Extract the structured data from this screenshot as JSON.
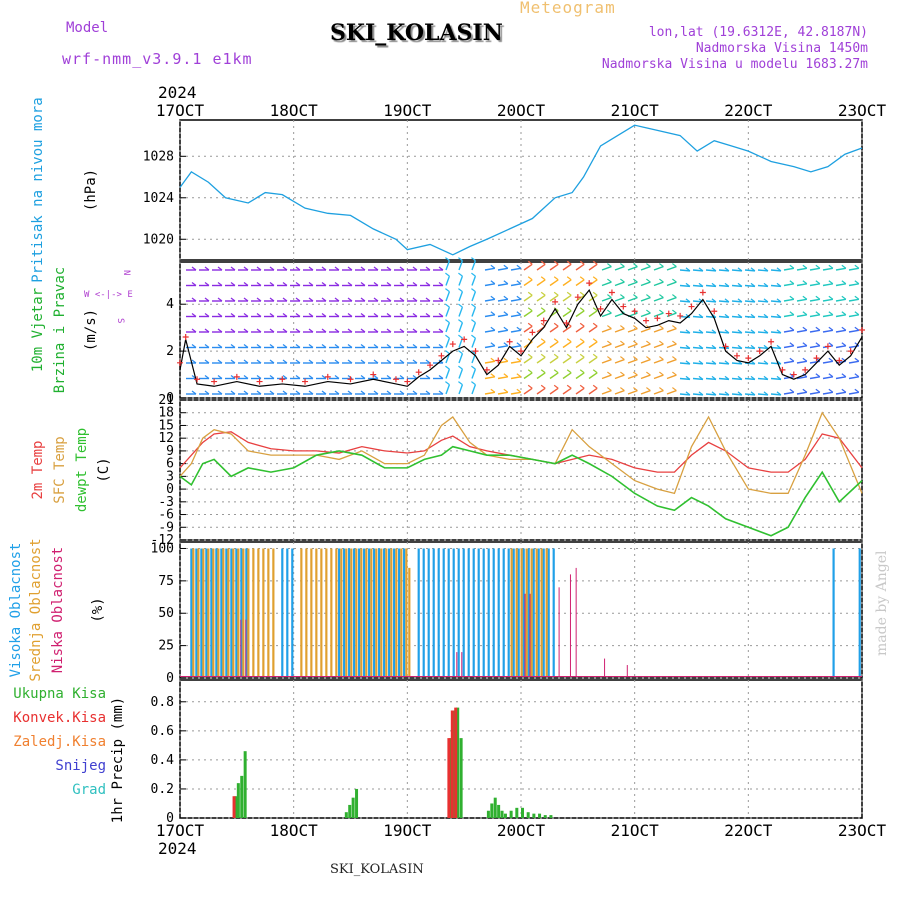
{
  "header": {
    "title": "SKI_KOLASIN",
    "model_label": "Model",
    "model_value": "wrf-nmm_v3.9.1 e1km",
    "meteogram_label": "Meteogram",
    "location_lines": [
      "lon,lat (19.6312E, 42.8187N)",
      "Nadmorska Visina 1450m",
      "Nadmorska Visina u modelu 1683.27m"
    ]
  },
  "footer": {
    "station": "SKI_KOLASIN",
    "credit": "made by Angel"
  },
  "colors": {
    "pressure": "#1ea0e0",
    "wind_speed": "#000000",
    "wind_gust": "#e83030",
    "t2m": "#e84040",
    "sfc": "#d8a040",
    "dewpt": "#30c030",
    "cloud_high": "#20a0e8",
    "cloud_mid": "#e0a030",
    "cloud_low": "#d02070",
    "precip_total": "#30b030",
    "precip_conv": "#e83030",
    "precip_frozen": "#f08030",
    "snow": "#4040d0",
    "graupel": "#30c0c0"
  },
  "chart_data": {
    "type": "line",
    "x_axis": {
      "ticks": [
        "17OCT",
        "18OCT",
        "19OCT",
        "20OCT",
        "21OCT",
        "22OCT",
        "23OCT"
      ],
      "year_label": "2024",
      "xlim_days": [
        17,
        23
      ]
    },
    "panels": [
      {
        "id": "pressure",
        "type": "line",
        "ylabel": [
          "Pritisak na nivou mora",
          "(hPa)"
        ],
        "ylim": [
          1018,
          1031.5
        ],
        "yticks": [
          1020,
          1024,
          1028
        ],
        "series": [
          {
            "name": "",
            "x": [
              17.0,
              17.1,
              17.25,
              17.4,
              17.6,
              17.75,
              17.9,
              18.1,
              18.3,
              18.5,
              18.7,
              18.9,
              19.0,
              19.2,
              19.4,
              19.55,
              19.7,
              19.9,
              20.1,
              20.3,
              20.45,
              20.55,
              20.7,
              20.85,
              21.0,
              21.2,
              21.4,
              21.55,
              21.7,
              21.85,
              22.0,
              22.2,
              22.4,
              22.55,
              22.7,
              22.85,
              23.0
            ],
            "values": [
              1025.0,
              1026.5,
              1025.5,
              1024.0,
              1023.5,
              1024.5,
              1024.3,
              1023.0,
              1022.5,
              1022.3,
              1021.0,
              1020.0,
              1019.0,
              1019.5,
              1018.5,
              1019.3,
              1020.0,
              1021.0,
              1022.0,
              1024.0,
              1024.5,
              1026.0,
              1029.0,
              1030.0,
              1031.0,
              1030.5,
              1030.0,
              1028.5,
              1029.5,
              1029.0,
              1028.5,
              1027.5,
              1027.0,
              1026.5,
              1027.0,
              1028.2,
              1028.8
            ]
          }
        ]
      },
      {
        "id": "wind",
        "type": "line",
        "ylabel": [
          "10m Vjetar",
          "Brzina i Pravac",
          "(m/s)"
        ],
        "direction_key": [
          "N",
          "W <-|-> E",
          "S"
        ],
        "ylim": [
          0,
          5.8
        ],
        "yticks": [
          0,
          2,
          4
        ],
        "series": [
          {
            "name": "",
            "x": [
              17.0,
              17.05,
              17.15,
              17.3,
              17.5,
              17.7,
              17.9,
              18.1,
              18.3,
              18.5,
              18.7,
              18.9,
              19.0,
              19.1,
              19.2,
              19.3,
              19.4,
              19.5,
              19.6,
              19.7,
              19.8,
              19.9,
              20.0,
              20.1,
              20.2,
              20.3,
              20.4,
              20.5,
              20.6,
              20.7,
              20.8,
              20.9,
              21.0,
              21.1,
              21.2,
              21.3,
              21.4,
              21.5,
              21.6,
              21.7,
              21.8,
              21.9,
              22.0,
              22.1,
              22.2,
              22.3,
              22.4,
              22.5,
              22.6,
              22.7,
              22.8,
              22.9,
              23.0
            ],
            "values": [
              1.2,
              2.5,
              0.6,
              0.5,
              0.7,
              0.5,
              0.6,
              0.5,
              0.7,
              0.6,
              0.8,
              0.6,
              0.5,
              0.9,
              1.2,
              1.6,
              2.0,
              2.2,
              1.8,
              1.0,
              1.4,
              2.2,
              1.8,
              2.5,
              3.0,
              3.8,
              3.0,
              4.0,
              4.6,
              3.5,
              4.2,
              3.6,
              3.4,
              3.0,
              3.1,
              3.3,
              3.2,
              3.6,
              4.2,
              3.4,
              2.0,
              1.6,
              1.5,
              1.8,
              2.2,
              1.0,
              0.8,
              1.0,
              1.5,
              2.0,
              1.4,
              1.8,
              2.6
            ]
          },
          {
            "name": "",
            "x": [
              17.0,
              17.05,
              17.15,
              17.3,
              17.5,
              17.7,
              17.9,
              18.1,
              18.3,
              18.5,
              18.7,
              18.9,
              19.0,
              19.1,
              19.2,
              19.3,
              19.4,
              19.5,
              19.6,
              19.7,
              19.8,
              19.9,
              20.0,
              20.1,
              20.2,
              20.3,
              20.4,
              20.5,
              20.6,
              20.7,
              20.8,
              20.9,
              21.0,
              21.1,
              21.2,
              21.3,
              21.4,
              21.5,
              21.6,
              21.7,
              21.8,
              21.9,
              22.0,
              22.1,
              22.2,
              22.3,
              22.4,
              22.5,
              22.6,
              22.7,
              22.8,
              22.9,
              23.0
            ],
            "values": [
              1.5,
              2.6,
              0.8,
              0.7,
              0.9,
              0.7,
              0.8,
              0.7,
              0.9,
              0.8,
              1.0,
              0.8,
              0.7,
              1.1,
              1.4,
              1.8,
              2.3,
              2.5,
              2.0,
              1.2,
              1.6,
              2.4,
              2.0,
              2.8,
              3.3,
              4.1,
              3.2,
              4.3,
              4.9,
              3.8,
              4.5,
              3.9,
              3.7,
              3.3,
              3.4,
              3.6,
              3.5,
              3.9,
              4.5,
              3.7,
              2.2,
              1.8,
              1.7,
              2.0,
              2.4,
              1.2,
              1.0,
              1.2,
              1.7,
              2.2,
              1.6,
              2.0,
              2.9
            ]
          }
        ]
      },
      {
        "id": "temperature",
        "type": "line",
        "ylabel": [
          "2m Temp",
          "SFC Temp",
          "dewpt Temp",
          "(C)"
        ],
        "ylim": [
          -12,
          21
        ],
        "yticks": [
          -12,
          -9,
          -6,
          -3,
          0,
          3,
          6,
          9,
          12,
          15,
          18,
          21
        ],
        "series": [
          {
            "name": "2m Temp",
            "x": [
              17.0,
              17.1,
              17.2,
              17.3,
              17.45,
              17.6,
              17.8,
              18.0,
              18.2,
              18.4,
              18.6,
              18.8,
              19.0,
              19.15,
              19.3,
              19.4,
              19.55,
              19.7,
              19.9,
              20.1,
              20.3,
              20.45,
              20.6,
              20.8,
              21.0,
              21.2,
              21.35,
              21.5,
              21.65,
              21.8,
              22.0,
              22.2,
              22.35,
              22.5,
              22.65,
              22.8,
              23.0
            ],
            "values": [
              5,
              8,
              11,
              13,
              13.5,
              11,
              9.5,
              9,
              9,
              8.5,
              10,
              9,
              8.5,
              9,
              11.5,
              12.5,
              10,
              9,
              8,
              7,
              6,
              7,
              8,
              7,
              5,
              4,
              4,
              8,
              11,
              9,
              5,
              4,
              4,
              7,
              13,
              12,
              5
            ]
          },
          {
            "name": "SFC Temp",
            "x": [
              17.0,
              17.1,
              17.2,
              17.3,
              17.45,
              17.6,
              17.8,
              18.0,
              18.2,
              18.4,
              18.6,
              18.8,
              19.0,
              19.15,
              19.3,
              19.4,
              19.55,
              19.7,
              19.9,
              20.1,
              20.3,
              20.45,
              20.6,
              20.8,
              21.0,
              21.2,
              21.35,
              21.5,
              21.65,
              21.8,
              22.0,
              22.2,
              22.35,
              22.5,
              22.65,
              22.8,
              23.0
            ],
            "values": [
              3,
              6,
              12,
              14,
              13,
              9,
              8,
              8,
              8,
              7,
              9,
              6,
              6,
              8,
              15,
              17,
              11,
              8,
              7,
              7,
              6,
              14,
              10,
              6,
              2,
              0,
              -1,
              10,
              17,
              9,
              0,
              -1,
              -1,
              8,
              18,
              12,
              -1
            ]
          },
          {
            "name": "dewpt Temp",
            "x": [
              17.0,
              17.1,
              17.2,
              17.3,
              17.45,
              17.6,
              17.8,
              18.0,
              18.2,
              18.4,
              18.6,
              18.8,
              19.0,
              19.15,
              19.3,
              19.4,
              19.55,
              19.7,
              19.9,
              20.1,
              20.3,
              20.45,
              20.6,
              20.8,
              21.0,
              21.2,
              21.35,
              21.5,
              21.65,
              21.8,
              22.0,
              22.2,
              22.35,
              22.5,
              22.65,
              22.8,
              23.0
            ],
            "values": [
              3,
              1,
              6,
              7,
              3,
              5,
              4,
              5,
              8,
              9,
              8,
              5,
              5,
              7,
              8,
              10,
              9,
              8,
              8,
              7,
              6,
              8,
              6,
              3,
              -1,
              -4,
              -5,
              -2,
              -4,
              -7,
              -9,
              -11,
              -9,
              -2,
              4,
              -3,
              2
            ]
          }
        ]
      },
      {
        "id": "clouds",
        "type": "bar",
        "ylabel": [
          "Visoka Oblacnost",
          "Srednja Oblacnost",
          "Niska Oblacnost",
          "(%)"
        ],
        "ylim": [
          0,
          105
        ],
        "yticks": [
          0,
          25,
          50,
          75,
          100
        ],
        "series": [
          {
            "name": "Visoka Oblacnost",
            "spans": [
              [
                17.1,
                17.6,
                100
              ],
              [
                17.9,
                18.0,
                100
              ],
              [
                18.4,
                19.0,
                100
              ],
              [
                19.1,
                20.3,
                100
              ],
              [
                22.75,
                22.78,
                100
              ],
              [
                22.98,
                23.0,
                100
              ]
            ]
          },
          {
            "name": "Srednja Oblacnost",
            "spans": [
              [
                17.1,
                17.85,
                100
              ],
              [
                18.05,
                19.0,
                100
              ],
              [
                19.0,
                19.05,
                85
              ],
              [
                19.9,
                20.25,
                100
              ]
            ]
          },
          {
            "name": "Niska Oblacnost",
            "spans": [
              [
                17.5,
                17.6,
                45
              ],
              [
                19.4,
                19.5,
                20
              ],
              [
                20.0,
                20.1,
                65
              ],
              [
                20.3,
                20.35,
                70
              ],
              [
                20.4,
                20.45,
                80
              ],
              [
                20.45,
                20.5,
                85
              ],
              [
                20.7,
                20.75,
                15
              ],
              [
                20.9,
                20.95,
                10
              ]
            ]
          }
        ]
      },
      {
        "id": "precip",
        "type": "bar",
        "ylabel": [
          "1hr Precip (mm)"
        ],
        "legend": [
          "Ukupna Kisa",
          "Konvek.Kisa",
          "Zaledj.Kisa",
          "Snijeg",
          "Grad"
        ],
        "ylim": [
          0,
          0.95
        ],
        "yticks": [
          0,
          0.2,
          0.4,
          0.6,
          0.8
        ],
        "series": [
          {
            "name": "Ukupna Kisa",
            "x": [
              17.48,
              17.5,
              17.53,
              17.56,
              18.45,
              18.48,
              18.51,
              18.54,
              19.37,
              19.4,
              19.43,
              19.46,
              19.7,
              19.73,
              19.76,
              19.79,
              19.82,
              19.85,
              19.9,
              19.95,
              20.0,
              20.05,
              20.1,
              20.15,
              20.2,
              20.25
            ],
            "values": [
              0.15,
              0.24,
              0.29,
              0.46,
              0.04,
              0.09,
              0.14,
              0.2,
              0.55,
              0.74,
              0.76,
              0.55,
              0.05,
              0.1,
              0.14,
              0.09,
              0.05,
              0.03,
              0.05,
              0.07,
              0.07,
              0.04,
              0.03,
              0.03,
              0.02,
              0.02
            ]
          },
          {
            "name": "Konvek.Kisa",
            "x": [
              17.48,
              19.37,
              19.4,
              19.43
            ],
            "values": [
              0.15,
              0.55,
              0.74,
              0.76
            ]
          }
        ]
      }
    ]
  }
}
